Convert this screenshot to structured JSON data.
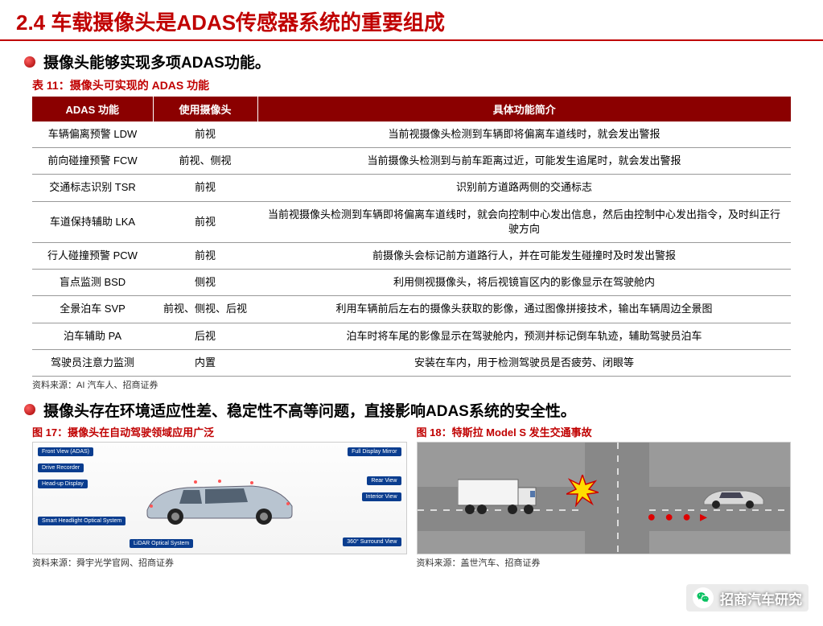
{
  "header": {
    "section_number": "2.4",
    "section_title": "车载摄像头是ADAS传感器系统的重要组成"
  },
  "bullets": {
    "b1": "摄像头能够实现多项ADAS功能。",
    "b2": "摄像头存在环境适应性差、稳定性不高等问题，直接影响ADAS系统的安全性。"
  },
  "table11": {
    "caption": "表 11：摄像头可实现的 ADAS 功能",
    "source": "资料来源：AI 汽车人、招商证券",
    "columns": [
      "ADAS 功能",
      "使用摄像头",
      "具体功能简介"
    ],
    "rows": [
      [
        "车辆偏离预警 LDW",
        "前视",
        "当前视摄像头检测到车辆即将偏离车道线时，就会发出警报"
      ],
      [
        "前向碰撞预警 FCW",
        "前视、侧视",
        "当前摄像头检测到与前车距离过近，可能发生追尾时，就会发出警报"
      ],
      [
        "交通标志识别 TSR",
        "前视",
        "识别前方道路两侧的交通标志"
      ],
      [
        "车道保持辅助 LKA",
        "前视",
        "当前视摄像头检测到车辆即将偏离车道线时，就会向控制中心发出信息，然后由控制中心发出指令，及时纠正行驶方向"
      ],
      [
        "行人碰撞预警 PCW",
        "前视",
        "前摄像头会标记前方道路行人，并在可能发生碰撞时及时发出警报"
      ],
      [
        "盲点监测 BSD",
        "侧视",
        "利用侧视摄像头，将后视镜盲区内的影像显示在驾驶舱内"
      ],
      [
        "全景泊车 SVP",
        "前视、侧视、后视",
        "利用车辆前后左右的摄像头获取的影像，通过图像拼接技术，输出车辆周边全景图"
      ],
      [
        "泊车辅助 PA",
        "后视",
        "泊车时将车尾的影像显示在驾驶舱内，预测并标记倒车轨迹，辅助驾驶员泊车"
      ],
      [
        "驾驶员注意力监测",
        "内置",
        "安装在车内，用于检测驾驶员是否疲劳、闭眼等"
      ]
    ]
  },
  "figure17": {
    "caption": "图 17：摄像头在自动驾驶领域应用广泛",
    "source": "资料来源：舜宇光学官网、招商证券",
    "labels": {
      "l1": "Front View (ADAS)",
      "l2": "Drive Recorder",
      "l3": "Head-up Display",
      "l4": "Smart Headlight Optical System",
      "l5": "LiDAR Optical System",
      "l6": "Full Display Mirror",
      "l7": "Rear View",
      "l8": "Interior View",
      "l9": "360° Surround View"
    }
  },
  "figure18": {
    "caption": "图 18：特斯拉 Model S 发生交通事故",
    "source": "资料来源：盖世汽车、招商证券"
  },
  "watermark": {
    "text": "招商汽车研究"
  },
  "colors": {
    "accent": "#c00000",
    "header_bg": "#8b0000",
    "text": "#000000",
    "label_blue": "#0a3d8f"
  }
}
